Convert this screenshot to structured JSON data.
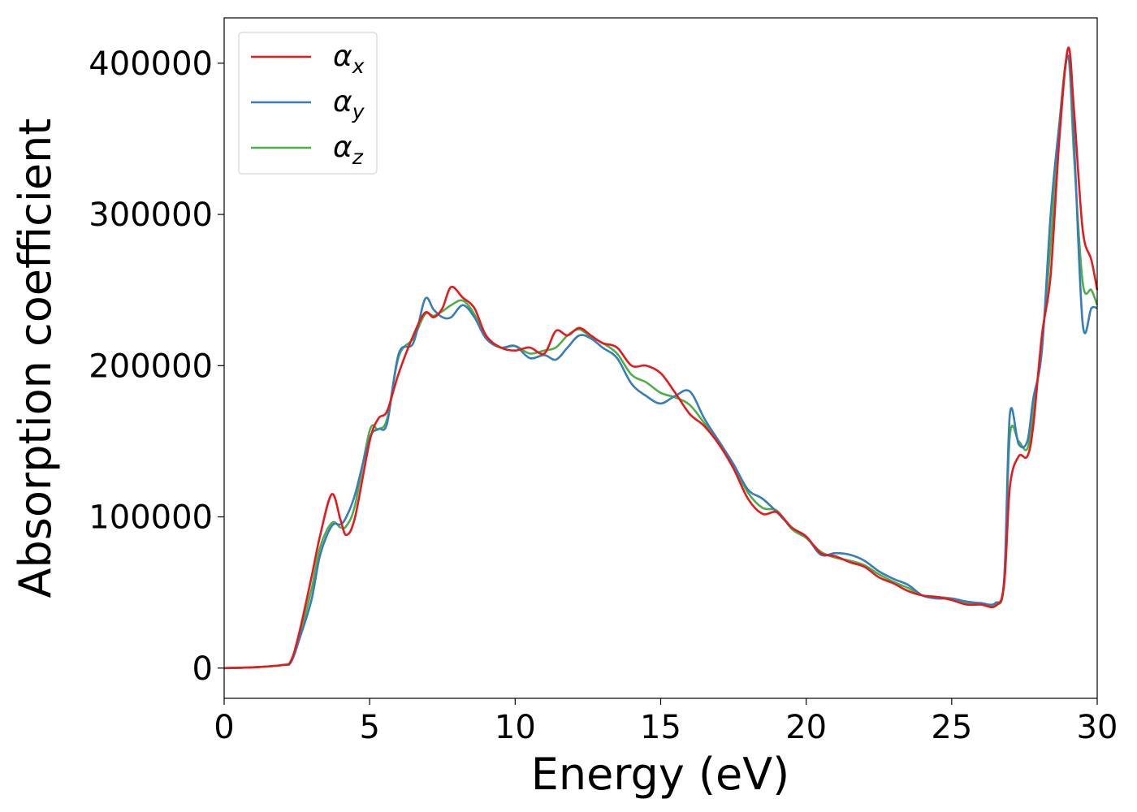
{
  "chart_data": {
    "type": "line",
    "xlabel": "Energy (eV)",
    "ylabel": "Absorption coefficient",
    "xlim": [
      0,
      30
    ],
    "ylim": [
      -20000,
      430000
    ],
    "xticks": [
      "0",
      "5",
      "10",
      "15",
      "20",
      "25",
      "30"
    ],
    "yticks": [
      "0",
      "100000",
      "200000",
      "300000",
      "400000"
    ],
    "grid": false,
    "legend_position": "top-left",
    "x": [
      0,
      1,
      2,
      2.3,
      2.6,
      3,
      3.3,
      3.7,
      4,
      4.2,
      4.5,
      5,
      5.3,
      5.6,
      6,
      6.5,
      6.9,
      7.2,
      7.5,
      7.8,
      8.2,
      8.6,
      9,
      9.5,
      10,
      10.5,
      11,
      11.4,
      11.8,
      12.2,
      12.6,
      13,
      13.5,
      14,
      14.5,
      15,
      15.5,
      16,
      16.5,
      17,
      17.5,
      18,
      18.5,
      19,
      19.5,
      20,
      20.5,
      21,
      21.5,
      22,
      22.5,
      23,
      23.5,
      24,
      24.5,
      25,
      25.5,
      26,
      26.5,
      26.8,
      27,
      27.3,
      27.6,
      27.8,
      28.1,
      28.4,
      28.7,
      29,
      29.2,
      29.5,
      29.8,
      30
    ],
    "series": [
      {
        "name": "α_x",
        "color": "#e41a1c",
        "values": [
          0,
          500,
          2000,
          5000,
          25000,
          60000,
          88000,
          115000,
          98000,
          88000,
          100000,
          150000,
          165000,
          170000,
          195000,
          220000,
          235000,
          232000,
          238000,
          252000,
          245000,
          238000,
          220000,
          212000,
          210000,
          212000,
          208000,
          223000,
          220000,
          225000,
          220000,
          215000,
          212000,
          200000,
          200000,
          195000,
          182000,
          168000,
          160000,
          148000,
          132000,
          112000,
          102000,
          103000,
          93000,
          87000,
          76000,
          74000,
          70000,
          67000,
          60000,
          56000,
          51000,
          48000,
          47000,
          45000,
          42000,
          42000,
          41000,
          55000,
          120000,
          140000,
          140000,
          160000,
          220000,
          260000,
          350000,
          410000,
          370000,
          290000,
          270000,
          250000
        ]
      },
      {
        "name": "α_y",
        "color": "#377eb8",
        "values": [
          0,
          500,
          2000,
          4000,
          20000,
          45000,
          75000,
          94000,
          95000,
          100000,
          115000,
          152000,
          158000,
          162000,
          208000,
          215000,
          244000,
          237000,
          232000,
          232000,
          240000,
          232000,
          218000,
          212000,
          213000,
          205000,
          207000,
          204000,
          212000,
          220000,
          218000,
          212000,
          205000,
          188000,
          180000,
          175000,
          180000,
          183000,
          165000,
          150000,
          135000,
          118000,
          112000,
          103000,
          93000,
          87000,
          75000,
          76000,
          75000,
          71000,
          64000,
          59000,
          55000,
          48000,
          46000,
          46000,
          44000,
          43000,
          43000,
          58000,
          168000,
          148000,
          150000,
          178000,
          210000,
          300000,
          360000,
          405000,
          350000,
          228000,
          238000,
          238000
        ]
      },
      {
        "name": "α_z",
        "color": "#4daf4a",
        "values": [
          0,
          500,
          2000,
          4500,
          22000,
          52000,
          80000,
          96000,
          93000,
          94000,
          108000,
          157000,
          158000,
          165000,
          206000,
          218000,
          234000,
          233000,
          236000,
          240000,
          243000,
          234000,
          218000,
          212000,
          213000,
          208000,
          210000,
          212000,
          220000,
          224000,
          219000,
          215000,
          208000,
          194000,
          189000,
          182000,
          179000,
          174000,
          162000,
          150000,
          134000,
          116000,
          106000,
          104000,
          92000,
          86000,
          77000,
          73000,
          71000,
          68000,
          62000,
          57000,
          53000,
          48000,
          47000,
          46000,
          43000,
          42000,
          42000,
          56000,
          154000,
          150000,
          145000,
          170000,
          215000,
          280000,
          360000,
          405000,
          340000,
          255000,
          250000,
          240000
        ]
      }
    ]
  },
  "legend": {
    "items": [
      {
        "symbol": "α",
        "subscript": "x"
      },
      {
        "symbol": "α",
        "subscript": "y"
      },
      {
        "symbol": "α",
        "subscript": "z"
      }
    ]
  }
}
